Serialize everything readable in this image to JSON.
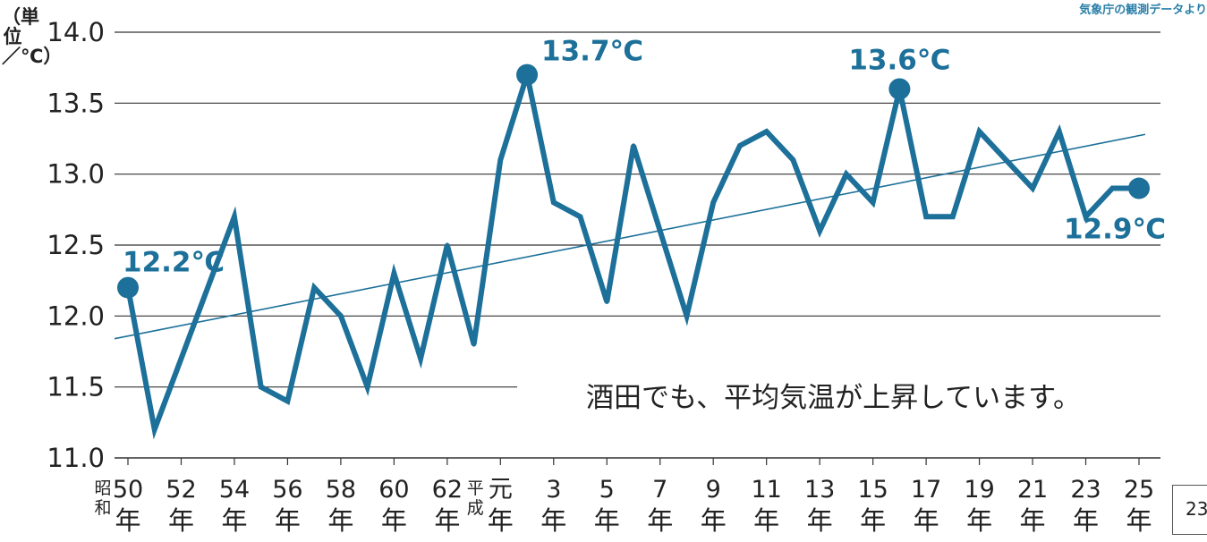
{
  "source_note": "気象庁の観測データより",
  "y_unit_label": "（単位／℃）",
  "page_number": "23",
  "colors": {
    "series": "#1c7099",
    "grid": "#333333",
    "trend": "#1c7099",
    "text": "#222222"
  },
  "chart_data": {
    "type": "line",
    "title": "",
    "xlabel": "",
    "ylabel": "（単位／℃）",
    "ylim": [
      11.0,
      14.0
    ],
    "y_ticks": [
      "14.0",
      "13.5",
      "13.0",
      "12.5",
      "12.0",
      "11.5",
      "11.0"
    ],
    "x_tick_labels": [
      {
        "era": "昭和",
        "label": "50",
        "suffix": "年"
      },
      {
        "label": "52",
        "suffix": "年"
      },
      {
        "label": "54",
        "suffix": "年"
      },
      {
        "label": "56",
        "suffix": "年"
      },
      {
        "label": "58",
        "suffix": "年"
      },
      {
        "label": "60",
        "suffix": "年"
      },
      {
        "label": "62",
        "suffix": "年"
      },
      {
        "era": "平成",
        "label": "元",
        "suffix": "年"
      },
      {
        "label": "3",
        "suffix": "年"
      },
      {
        "label": "5",
        "suffix": "年"
      },
      {
        "label": "7",
        "suffix": "年"
      },
      {
        "label": "9",
        "suffix": "年"
      },
      {
        "label": "11",
        "suffix": "年"
      },
      {
        "label": "13",
        "suffix": "年"
      },
      {
        "label": "15",
        "suffix": "年"
      },
      {
        "label": "17",
        "suffix": "年"
      },
      {
        "label": "19",
        "suffix": "年"
      },
      {
        "label": "21",
        "suffix": "年"
      },
      {
        "label": "23",
        "suffix": "年"
      },
      {
        "label": "25",
        "suffix": "年"
      }
    ],
    "x": [
      "昭和50",
      "昭和51",
      "昭和52",
      "昭和53",
      "昭和54",
      "昭和55",
      "昭和56",
      "昭和57",
      "昭和58",
      "昭和59",
      "昭和60",
      "昭和61",
      "昭和62",
      "昭和63",
      "平成元",
      "平成2",
      "平成3",
      "平成4",
      "平成5",
      "平成6",
      "平成7",
      "平成8",
      "平成9",
      "平成10",
      "平成11",
      "平成12",
      "平成13",
      "平成14",
      "平成15",
      "平成16",
      "平成17",
      "平成18",
      "平成19",
      "平成20",
      "平成21",
      "平成22",
      "平成23",
      "平成24",
      "平成25"
    ],
    "series": [
      {
        "values": [
          12.2,
          11.2,
          11.7,
          12.2,
          12.7,
          11.5,
          11.4,
          12.2,
          12.0,
          11.5,
          12.3,
          11.7,
          12.5,
          11.8,
          13.1,
          13.7,
          12.8,
          12.7,
          12.1,
          13.2,
          12.6,
          12.0,
          12.8,
          13.2,
          13.3,
          13.1,
          12.6,
          13.0,
          12.8,
          13.6,
          12.7,
          12.7,
          13.3,
          13.1,
          12.9,
          13.3,
          12.7,
          12.9,
          12.9
        ]
      }
    ],
    "trend": [
      11.84,
      13.28
    ],
    "highlights": [
      {
        "index": 0,
        "label": "12.2℃"
      },
      {
        "index": 15,
        "label": "13.7℃"
      },
      {
        "index": 29,
        "label": "13.6℃"
      },
      {
        "index": 38,
        "label": "12.9℃"
      }
    ],
    "annotation": "酒田でも、平均気温が上昇しています。",
    "grid": true
  }
}
